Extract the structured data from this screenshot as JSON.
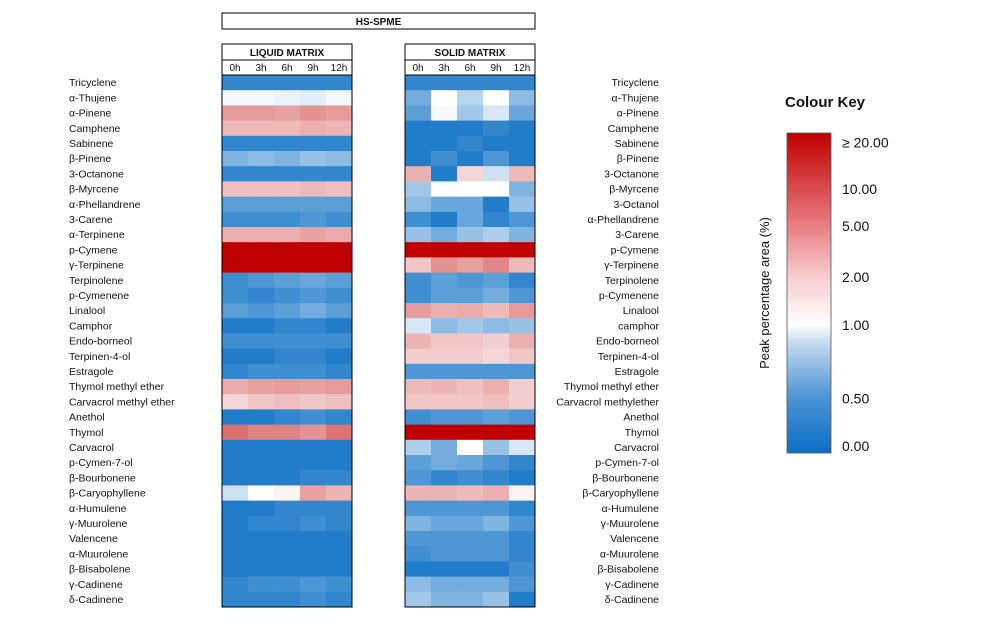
{
  "chart_data": {
    "type": "heatmap",
    "title": "HS-SPME",
    "timepoints": [
      "0h",
      "3h",
      "6h",
      "9h",
      "12h"
    ],
    "panels": [
      {
        "name": "LIQUID MATRIX",
        "rows": [
          "Tricyclene",
          "α-Thujene",
          "α-Pinene",
          "Camphene",
          "Sabinene",
          "β-Pinene",
          "3-Octanone",
          "β-Myrcene",
          "α-Phellandrene",
          "3-Carene",
          "α-Terpinene",
          "p-Cymene",
          "γ-Terpinene",
          "Terpinolene",
          "p-Cymenene",
          "Linalool",
          "Camphor",
          "Endo-borneol",
          "Terpinen-4-ol",
          "Estragole",
          "Thymol methyl ether",
          "Carvacrol methyl ether",
          "Anethol",
          "Thymol",
          "Carvacrol",
          "p-Cymen-7-ol",
          "β-Bourbonene",
          "β-Caryophyllene",
          "α-Humulene",
          "γ-Muurolene",
          "Valencene",
          "α-Muurolene",
          "β-Bisabolene",
          "γ-Cadinene",
          "δ-Cadinene"
        ],
        "values": [
          [
            0.1,
            0.1,
            0.1,
            0.1,
            0.1
          ],
          [
            0.95,
            0.95,
            0.9,
            0.85,
            0.95
          ],
          [
            2.4,
            2.4,
            2.2,
            2.6,
            2.4
          ],
          [
            1.7,
            1.7,
            1.7,
            1.9,
            1.8
          ],
          [
            0.1,
            0.1,
            0.1,
            0.1,
            0.1
          ],
          [
            0.4,
            0.45,
            0.4,
            0.5,
            0.45
          ],
          [
            0.1,
            0.1,
            0.1,
            0.1,
            0.1
          ],
          [
            1.6,
            1.6,
            1.6,
            1.7,
            1.6
          ],
          [
            0.25,
            0.25,
            0.25,
            0.25,
            0.25
          ],
          [
            0.15,
            0.15,
            0.15,
            0.2,
            0.15
          ],
          [
            1.9,
            1.9,
            1.9,
            2.2,
            2.0
          ],
          [
            25,
            25,
            25,
            25,
            25
          ],
          [
            22,
            22,
            22,
            22,
            22
          ],
          [
            0.15,
            0.2,
            0.25,
            0.3,
            0.25
          ],
          [
            0.15,
            0.1,
            0.15,
            0.2,
            0.15
          ],
          [
            0.25,
            0.2,
            0.25,
            0.35,
            0.25
          ],
          [
            0.05,
            0.05,
            0.1,
            0.1,
            0.05
          ],
          [
            0.15,
            0.15,
            0.15,
            0.15,
            0.15
          ],
          [
            0.05,
            0.05,
            0.1,
            0.1,
            0.05
          ],
          [
            0.1,
            0.15,
            0.15,
            0.15,
            0.1
          ],
          [
            2.0,
            2.2,
            2.3,
            2.2,
            2.4
          ],
          [
            1.3,
            1.5,
            1.6,
            1.5,
            1.6
          ],
          [
            0.05,
            0.05,
            0.1,
            0.15,
            0.1
          ],
          [
            4.0,
            3.2,
            3.2,
            2.6,
            3.9
          ],
          [
            0.05,
            0.05,
            0.05,
            0.05,
            0.05
          ],
          [
            0.05,
            0.05,
            0.05,
            0.05,
            0.05
          ],
          [
            0.05,
            0.05,
            0.05,
            0.1,
            0.1
          ],
          [
            0.75,
            1.0,
            1.05,
            2.2,
            1.8
          ],
          [
            0.05,
            0.05,
            0.1,
            0.1,
            0.1
          ],
          [
            0.05,
            0.1,
            0.1,
            0.15,
            0.1
          ],
          [
            0.05,
            0.05,
            0.05,
            0.05,
            0.05
          ],
          [
            0.05,
            0.05,
            0.05,
            0.05,
            0.05
          ],
          [
            0.05,
            0.05,
            0.05,
            0.05,
            0.05
          ],
          [
            0.1,
            0.15,
            0.15,
            0.2,
            0.15
          ],
          [
            0.1,
            0.1,
            0.1,
            0.15,
            0.1
          ]
        ]
      },
      {
        "name": "SOLID MATRIX",
        "rows": [
          "Tricyclene",
          "α-Thujene",
          "α-Pinene",
          "Camphene",
          "Sabinene",
          "β-Pinene",
          "3-Octanone",
          "β-Myrcene",
          "3-Octanol",
          "α-Phellandrene",
          "3-Carene",
          "p-Cymene",
          "γ-Terpinene",
          "Terpinolene",
          "p-Cymenene",
          "Linalool",
          "camphor",
          "Endo-borneol",
          "Terpinen-4-ol",
          "Estragole",
          "Thymol methyl ether",
          "Carvacrol methylether",
          "Anethol",
          "Thymol",
          "Carvacrol",
          "p-Cymen-7-ol",
          "β-Bourbonene",
          "β-Caryophyllene",
          "α-Humulene",
          "γ-Muurolene",
          "Valencene",
          "α-Muurolene",
          "β-Bisabolene",
          "γ-Cadinene",
          "δ-Cadinene"
        ],
        "values": [
          [
            0.1,
            0.1,
            0.1,
            0.1,
            0.1
          ],
          [
            0.35,
            1.0,
            0.65,
            1.0,
            0.45
          ],
          [
            0.25,
            0.95,
            0.55,
            0.8,
            0.3
          ],
          [
            0.05,
            0.05,
            0.05,
            0.1,
            0.05
          ],
          [
            0.05,
            0.05,
            0.1,
            0.05,
            0.05
          ],
          [
            0.05,
            0.15,
            0.05,
            0.2,
            0.05
          ],
          [
            1.9,
            0.05,
            1.3,
            0.75,
            1.7
          ],
          [
            0.55,
            1.0,
            1.0,
            1.0,
            0.4
          ],
          [
            0.45,
            0.3,
            0.3,
            0.05,
            0.5
          ],
          [
            0.15,
            0.05,
            0.3,
            0.1,
            0.2
          ],
          [
            0.5,
            0.35,
            0.5,
            0.6,
            0.4
          ],
          [
            25,
            25,
            25,
            25,
            25
          ],
          [
            1.5,
            2.6,
            2.2,
            3.0,
            1.7
          ],
          [
            0.15,
            0.25,
            0.2,
            0.25,
            0.1
          ],
          [
            0.15,
            0.25,
            0.25,
            0.35,
            0.2
          ],
          [
            2.3,
            1.9,
            2.0,
            1.7,
            2.4
          ],
          [
            0.8,
            0.45,
            0.55,
            0.45,
            0.5
          ],
          [
            1.8,
            1.5,
            1.5,
            1.4,
            1.9
          ],
          [
            1.4,
            1.4,
            1.4,
            1.3,
            1.5
          ],
          [
            0.2,
            0.2,
            0.2,
            0.2,
            0.2
          ],
          [
            1.7,
            1.8,
            1.6,
            1.9,
            1.4
          ],
          [
            1.5,
            1.5,
            1.5,
            1.6,
            1.4
          ],
          [
            0.15,
            0.2,
            0.2,
            0.25,
            0.2
          ],
          [
            25,
            25,
            25,
            25,
            25
          ],
          [
            0.6,
            0.35,
            1.0,
            0.5,
            0.8
          ],
          [
            0.25,
            0.35,
            0.3,
            0.2,
            0.1
          ],
          [
            0.2,
            0.1,
            0.15,
            0.1,
            0.05
          ],
          [
            1.8,
            1.8,
            1.7,
            1.9,
            1.05
          ],
          [
            0.2,
            0.2,
            0.2,
            0.2,
            0.1
          ],
          [
            0.4,
            0.3,
            0.3,
            0.4,
            0.2
          ],
          [
            0.2,
            0.2,
            0.2,
            0.2,
            0.1
          ],
          [
            0.15,
            0.2,
            0.2,
            0.2,
            0.1
          ],
          [
            0.05,
            0.05,
            0.05,
            0.05,
            0.15
          ],
          [
            0.45,
            0.35,
            0.35,
            0.35,
            0.2
          ],
          [
            0.55,
            0.4,
            0.4,
            0.5,
            0.05
          ]
        ]
      }
    ],
    "colour_key": {
      "title": "Colour Key",
      "label": "Peak percentage area (%)",
      "ticks": [
        "≥ 20.00",
        "10.00",
        "5.00",
        "2.00",
        "1.00",
        "0.50",
        "0.00"
      ],
      "tick_values": [
        20,
        10,
        5,
        2,
        1,
        0.5,
        0
      ],
      "colors": {
        "low": "#0b6fc4",
        "mid": "#ffffff",
        "high": "#c00000"
      }
    }
  }
}
